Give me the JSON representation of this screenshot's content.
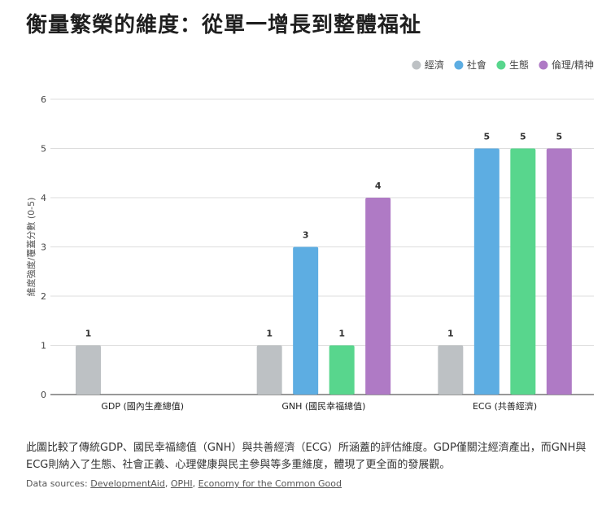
{
  "title": "衡量繁榮的維度：從單一增長到整體福祉",
  "chart_data": {
    "type": "bar",
    "title": "衡量繁榮的維度：從單一增長到整體福祉",
    "categories": [
      "GDP (國內生產總值)",
      "GNH (國民幸福總值)",
      "ECG (共善經濟)"
    ],
    "series": [
      {
        "name": "經濟",
        "color": "#bdc1c4",
        "values": [
          1,
          1,
          1
        ]
      },
      {
        "name": "社會",
        "color": "#5dade2",
        "values": [
          null,
          3,
          5
        ]
      },
      {
        "name": "生態",
        "color": "#58d68d",
        "values": [
          null,
          1,
          5
        ]
      },
      {
        "name": "倫理/精神",
        "color": "#af7ac5",
        "values": [
          null,
          4,
          5
        ]
      }
    ],
    "ylabel": "維度強度/覆蓋分數 (0-5)",
    "xlabel": "",
    "ylim": [
      0,
      6
    ],
    "yticks": [
      0,
      1,
      2,
      3,
      4,
      5,
      6
    ],
    "grid": true,
    "legend": "top-right"
  },
  "caption": "此圖比較了傳統GDP、國民幸福總值（GNH）與共善經濟（ECG）所涵蓋的評估維度。GDP僅關注經濟產出，而GNH與ECG則納入了生態、社會正義、心理健康與民主參與等多重維度，體現了更全面的發展觀。",
  "sources": {
    "prefix": "Data sources: ",
    "links": [
      "DevelopmentAid",
      "OPHI",
      "Economy for the Common Good"
    ],
    "separator": ", "
  }
}
